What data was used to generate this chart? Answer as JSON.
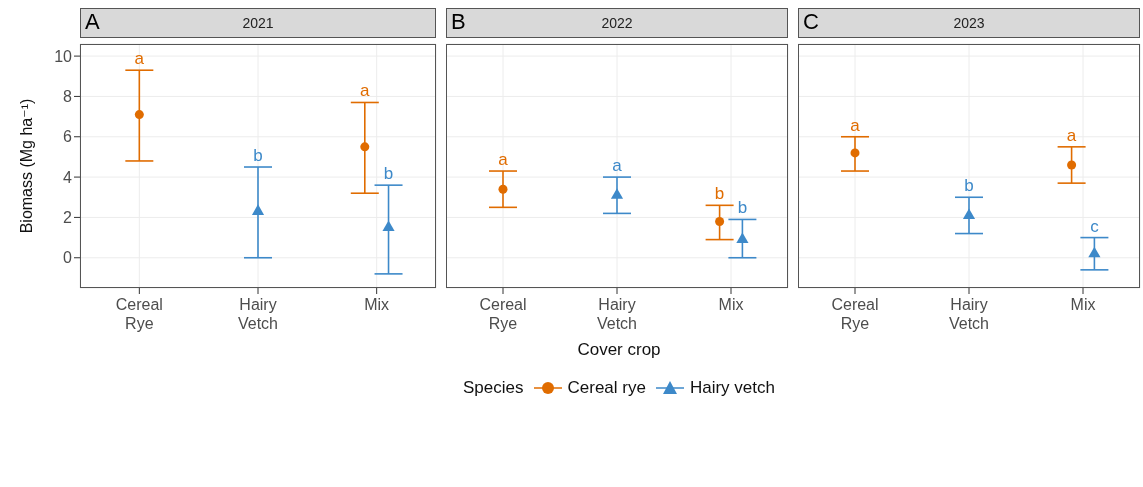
{
  "chart_data": [
    {
      "type": "scatter",
      "title": "2021",
      "annotations": [
        "A"
      ],
      "ylabel": "Biomass  (Mg ha⁻¹)",
      "categories": [
        "Cereal Rye",
        "Hairy Vetch",
        "Mix"
      ],
      "ylim": [
        -1.5,
        10.6
      ],
      "yticks": [
        0,
        2,
        4,
        6,
        8,
        10
      ],
      "grid": true,
      "series": [
        {
          "color": "#e06c00",
          "marker": "circle",
          "values": [
            7.1,
            null,
            5.5
          ],
          "errors": [
            [
              4.8,
              9.3
            ],
            null,
            [
              3.2,
              7.7
            ]
          ],
          "value_labels": [
            "a",
            null,
            "a"
          ]
        },
        {
          "color": "#3d89c9",
          "marker": "triangle",
          "values": [
            null,
            2.3,
            1.5
          ],
          "errors": [
            null,
            [
              0.0,
              4.5
            ],
            [
              -0.8,
              3.6
            ]
          ],
          "value_labels": [
            null,
            "b",
            "b"
          ]
        }
      ]
    },
    {
      "type": "scatter",
      "title": "2022",
      "annotations": [
        "B"
      ],
      "xlabel": "Cover crop",
      "legend_title": "Species",
      "legend": "bottom",
      "categories": [
        "Cereal Rye",
        "Hairy Vetch",
        "Mix"
      ],
      "ylim": [
        -1.5,
        10.6
      ],
      "yticks": [
        0,
        2,
        4,
        6,
        8,
        10
      ],
      "grid": true,
      "tick_labels": "x",
      "series": [
        {
          "name": "Cereal rye",
          "color": "#e06c00",
          "marker": "circle",
          "values": [
            3.4,
            null,
            1.8
          ],
          "errors": [
            [
              2.5,
              4.3
            ],
            null,
            [
              0.9,
              2.6
            ]
          ],
          "value_labels": [
            "a",
            null,
            "b"
          ]
        },
        {
          "name": "Hairy vetch",
          "color": "#3d89c9",
          "marker": "triangle",
          "values": [
            null,
            3.1,
            0.9
          ],
          "errors": [
            null,
            [
              2.2,
              4.0
            ],
            [
              0.0,
              1.9
            ]
          ],
          "value_labels": [
            null,
            "a",
            "b"
          ]
        }
      ]
    },
    {
      "type": "scatter",
      "title": "2023",
      "annotations": [
        "C"
      ],
      "categories": [
        "Cereal Rye",
        "Hairy Vetch",
        "Mix"
      ],
      "ylim": [
        -1.5,
        10.6
      ],
      "yticks": [
        0,
        2,
        4,
        6,
        8,
        10
      ],
      "grid": true,
      "tick_labels": "x",
      "series": [
        {
          "color": "#e06c00",
          "marker": "circle",
          "values": [
            5.2,
            null,
            4.6
          ],
          "errors": [
            [
              4.3,
              6.0
            ],
            null,
            [
              3.7,
              5.5
            ]
          ],
          "value_labels": [
            "a",
            null,
            "a"
          ]
        },
        {
          "color": "#3d89c9",
          "marker": "triangle",
          "values": [
            null,
            2.1,
            0.2
          ],
          "errors": [
            null,
            [
              1.2,
              3.0
            ],
            [
              -0.6,
              1.0
            ]
          ],
          "value_labels": [
            null,
            "b",
            "c"
          ]
        }
      ]
    }
  ]
}
